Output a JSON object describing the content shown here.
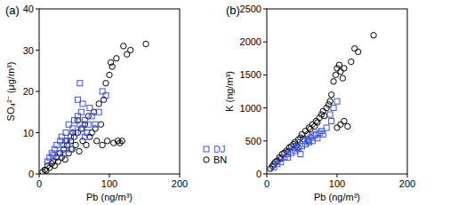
{
  "chart_data": [
    {
      "type": "scatter",
      "title": "(a)",
      "x_label": "Pb (ng/m³)",
      "y_label": "SO₄²⁻ (μg/m³)",
      "xlim": [
        0,
        200
      ],
      "xticks": [
        0,
        100,
        200
      ],
      "ylim": [
        0,
        40
      ],
      "yticks": [
        0,
        10,
        20,
        30,
        40
      ],
      "series": [
        {
          "name": "DJ",
          "color": "#3f51d8",
          "marker": "square",
          "x": [
            12,
            15,
            18,
            20,
            22,
            25,
            28,
            30,
            32,
            35,
            38,
            40,
            42,
            45,
            48,
            50,
            52,
            55,
            58,
            60,
            62,
            65,
            68,
            70,
            55,
            58,
            62,
            72,
            75,
            80,
            85,
            90,
            95,
            45,
            35,
            65
          ],
          "values": [
            3,
            4,
            5,
            4.5,
            6,
            7,
            5,
            8,
            9,
            7,
            10,
            8,
            12,
            9,
            11,
            13,
            10,
            14,
            12,
            15,
            11,
            13,
            10,
            12,
            18,
            22,
            17,
            16,
            14,
            12,
            15,
            20,
            19,
            6,
            5,
            9
          ]
        },
        {
          "name": "BN",
          "color": "#000000",
          "marker": "circle",
          "x": [
            5,
            8,
            10,
            12,
            15,
            18,
            20,
            22,
            25,
            27,
            30,
            32,
            35,
            37,
            40,
            42,
            45,
            47,
            50,
            52,
            55,
            57,
            60,
            62,
            65,
            67,
            70,
            72,
            75,
            78,
            80,
            82,
            85,
            88,
            90,
            92,
            95,
            97,
            100,
            102,
            104,
            106,
            110,
            112,
            115,
            120,
            118,
            125,
            130,
            152,
            55,
            48,
            38
          ],
          "values": [
            0.5,
            1,
            0.8,
            2,
            1.5,
            2.5,
            3,
            2,
            4,
            3,
            5,
            4,
            6,
            3.5,
            7,
            5,
            8,
            6,
            9,
            7,
            10,
            5.5,
            11,
            8,
            12,
            7,
            14,
            9,
            10,
            15,
            11,
            8,
            17,
            12,
            7,
            18,
            22,
            8,
            24,
            27,
            26,
            7.5,
            28,
            8,
            7.5,
            31,
            8,
            29,
            30,
            31.5,
            13,
            10,
            8
          ]
        }
      ]
    },
    {
      "type": "scatter",
      "title": "(b)",
      "x_label": "Pb (ng/m³)",
      "y_label": "K (ng/m³)",
      "xlim": [
        0,
        200
      ],
      "xticks": [
        0,
        100,
        200
      ],
      "ylim": [
        0,
        2500
      ],
      "yticks": [
        0,
        500,
        1000,
        1500,
        2000,
        2500
      ],
      "legend": "left",
      "series": [
        {
          "name": "DJ",
          "color": "#3f51d8",
          "marker": "square",
          "x": [
            10,
            15,
            20,
            25,
            30,
            35,
            40,
            42,
            45,
            50,
            52,
            55,
            58,
            60,
            62,
            65,
            68,
            70,
            72,
            75,
            78,
            80,
            85,
            90,
            92,
            95,
            100,
            30,
            38,
            48
          ],
          "values": [
            100,
            150,
            180,
            250,
            300,
            320,
            350,
            400,
            380,
            420,
            500,
            450,
            520,
            480,
            550,
            500,
            580,
            600,
            540,
            620,
            650,
            600,
            700,
            900,
            800,
            1000,
            1100,
            250,
            420,
            300
          ]
        },
        {
          "name": "BN",
          "color": "#000000",
          "marker": "circle",
          "x": [
            5,
            8,
            10,
            12,
            15,
            18,
            20,
            22,
            25,
            28,
            30,
            32,
            35,
            38,
            40,
            42,
            45,
            48,
            50,
            52,
            55,
            58,
            60,
            62,
            65,
            68,
            70,
            72,
            75,
            78,
            80,
            82,
            85,
            88,
            90,
            92,
            95,
            98,
            100,
            103,
            105,
            108,
            110,
            100,
            105,
            110,
            115,
            120,
            125,
            130,
            152,
            60,
            45
          ],
          "values": [
            80,
            120,
            150,
            180,
            200,
            250,
            230,
            300,
            320,
            350,
            330,
            400,
            420,
            450,
            480,
            430,
            520,
            550,
            600,
            530,
            650,
            600,
            700,
            680,
            750,
            720,
            800,
            780,
            850,
            900,
            950,
            880,
            1000,
            1050,
            1100,
            1200,
            1400,
            1500,
            1600,
            1650,
            1550,
            1450,
            1600,
            700,
            750,
            800,
            720,
            1700,
            1900,
            1850,
            2100,
            500,
            400
          ]
        }
      ]
    }
  ]
}
